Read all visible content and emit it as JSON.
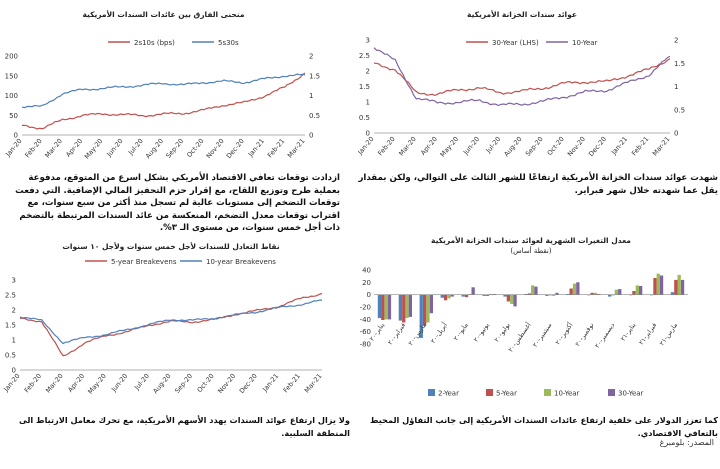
{
  "chart_data": [
    {
      "id": "spread",
      "type": "line",
      "title": "منحنى الفارق بين عائدات السندات الأمريكية",
      "x": [
        "Jan-20",
        "Feb-20",
        "Mar-20",
        "Apr-20",
        "May-20",
        "Jun-20",
        "Jul-20",
        "Aug-20",
        "Sep-20",
        "Oct-20",
        "Nov-20",
        "Dec-20",
        "Jan-21",
        "Feb-21",
        "Mar-21"
      ],
      "ylim_left": [
        0,
        200
      ],
      "yticks_left": [
        0,
        50,
        100,
        150,
        200
      ],
      "ylim_right": [
        0,
        2
      ],
      "yticks_right": [
        0,
        0.5,
        1,
        1.5,
        2
      ],
      "series": [
        {
          "name": "2s10s (bps)",
          "axis": "left",
          "color": "#c0504d",
          "values": [
            24,
            17,
            38,
            50,
            53,
            52,
            49,
            53,
            55,
            63,
            76,
            82,
            99,
            121,
            157
          ]
        },
        {
          "name": "5s30s",
          "axis": "right",
          "color": "#4f81bd",
          "values": [
            0.72,
            0.72,
            1.05,
            1.15,
            1.18,
            1.22,
            1.26,
            1.31,
            1.27,
            1.33,
            1.36,
            1.33,
            1.42,
            1.5,
            1.52
          ]
        }
      ]
    },
    {
      "id": "yields",
      "type": "line",
      "title": "عوائد سندات الخزانة الأمريكية",
      "x": [
        "Jan-20",
        "Feb-20",
        "Mar-20",
        "Apr-20",
        "May-20",
        "Jun-20",
        "Jul-20",
        "Aug-20",
        "Sep-20",
        "Oct-20",
        "Nov-20",
        "Dec-20",
        "Jan-21",
        "Feb-21",
        "Mar-21"
      ],
      "ylim_left": [
        0,
        3
      ],
      "yticks_left": [
        0,
        0.5,
        1,
        1.5,
        2,
        2.5,
        3
      ],
      "ylim_right": [
        0,
        2
      ],
      "yticks_right": [
        0,
        0.5,
        1,
        1.5,
        2
      ],
      "series": [
        {
          "name": "30-Year (LHS)",
          "axis": "left",
          "color": "#c0504d",
          "values": [
            2.25,
            2.05,
            1.3,
            1.25,
            1.4,
            1.45,
            1.3,
            1.35,
            1.45,
            1.6,
            1.65,
            1.65,
            1.85,
            2.05,
            2.4
          ]
        },
        {
          "name": "10-Year",
          "axis": "right",
          "color": "#8064a2",
          "values": [
            1.85,
            1.55,
            0.75,
            0.65,
            0.66,
            0.7,
            0.6,
            0.62,
            0.68,
            0.78,
            0.88,
            0.92,
            1.08,
            1.25,
            1.65
          ]
        }
      ]
    },
    {
      "id": "breakevens",
      "type": "line",
      "title": "نقاط التعادل للسندات لأجل خمس سنوات ولأجل ١٠ سنوات",
      "x": [
        "Jan-20",
        "Feb-20",
        "Mar-20",
        "Apr-20",
        "May-20",
        "Jun-20",
        "Jul-20",
        "Aug-20",
        "Sep-20",
        "Oct-20",
        "Nov-20",
        "Dec-20",
        "Jan-21",
        "Feb-21",
        "Mar-21"
      ],
      "ylim": [
        0,
        3
      ],
      "yticks": [
        0,
        0.5,
        1,
        1.5,
        2,
        2.5,
        3
      ],
      "series": [
        {
          "name": "5-year Breakevens",
          "color": "#c0504d",
          "values": [
            1.72,
            1.62,
            0.45,
            0.9,
            1.15,
            1.28,
            1.5,
            1.62,
            1.6,
            1.68,
            1.86,
            1.98,
            2.12,
            2.38,
            2.55
          ]
        },
        {
          "name": "10-year Breakevens",
          "color": "#4f81bd",
          "values": [
            1.78,
            1.65,
            0.9,
            1.08,
            1.18,
            1.35,
            1.52,
            1.68,
            1.66,
            1.72,
            1.84,
            1.94,
            2.08,
            2.18,
            2.33
          ]
        }
      ]
    },
    {
      "id": "monthly",
      "type": "bar",
      "title": "معدل التغيرات الشهرية لعوائد سندات الخزانة الأمريكية",
      "subtitle": "(نقطة أساس)",
      "categories": [
        "يناير-٢٠",
        "فبراير-٢٠",
        "مارس-٢٠",
        "أبريل-٢٠",
        "مايو-٢٠",
        "يونيو-٢٠",
        "يوليو-٢٠",
        "أغسطس-٢٠",
        "سبتمبر-٢٠",
        "أكتوبر-٢٠",
        "نوفمبر-٢٠",
        "ديسمبر-٢٠",
        "يناير-٢١",
        "فبراير-٢١",
        "مارس-٢١"
      ],
      "ylim": [
        -80,
        40
      ],
      "yticks": [
        -80,
        -60,
        -40,
        -20,
        0,
        20,
        40
      ],
      "series": [
        {
          "name": "2-Year",
          "color": "#4f81bd",
          "values": [
            -38,
            -42,
            -70,
            -5,
            -3,
            -2,
            -3,
            1,
            -2,
            1,
            0,
            -3,
            -1,
            0,
            4
          ]
        },
        {
          "name": "5-Year",
          "color": "#c0504d",
          "values": [
            -41,
            -45,
            -50,
            -9,
            -4,
            -2,
            -11,
            2,
            -1,
            10,
            3,
            -1,
            6,
            27,
            24
          ]
        },
        {
          "name": "10-Year",
          "color": "#9bbb59",
          "values": [
            -40,
            -38,
            -45,
            -6,
            1,
            1,
            -15,
            15,
            -2,
            18,
            3,
            8,
            15,
            34,
            32
          ]
        },
        {
          "name": "30-Year",
          "color": "#8064a2",
          "values": [
            -40,
            -36,
            -30,
            -3,
            12,
            1,
            -19,
            13,
            3,
            20,
            1,
            9,
            14,
            31,
            24
          ]
        }
      ]
    }
  ],
  "texts": {
    "para_top": "ازدادت توقعات تعافي الاقتصاد الأمريكي بشكل اسرع من المتوقع، مدفوعة بعملية طرح وتوزيع اللقاح، مع إقرار حزم التحفيز المالي الإضافية. التي دفعت توقعات التضخم إلى مستويات عالية لم تسجل منذ أكثر من سبع سنوات، مع اقتراب توقعات معدل التضخم، المنعكسة من عائد السندات المرتبطة بالتضخم ذات أجل خمس سنوات، من مستوى الـ ٣%.",
    "para_right": "شهدت عوائد سندات الخزانة الأمريكية ارتفاعًا للشهر الثالث على التوالي، ولكن بمقدار يقل عما شهدته خلال شهر فبراير.",
    "caption_left": "ولا يزال ارتفاع عوائد السندات يهدد الأسهم الأمريكية، مع تحرك معامل الارتباط الى المنطقة السلبية.",
    "caption_right": "كما تعزز الدولار على خلفية ارتفاع عائدات السندات الأمريكية إلى جانب التفاؤل المحيط بالتعافي الاقتصادي.",
    "source": "المصدر: بلومبرغ"
  }
}
